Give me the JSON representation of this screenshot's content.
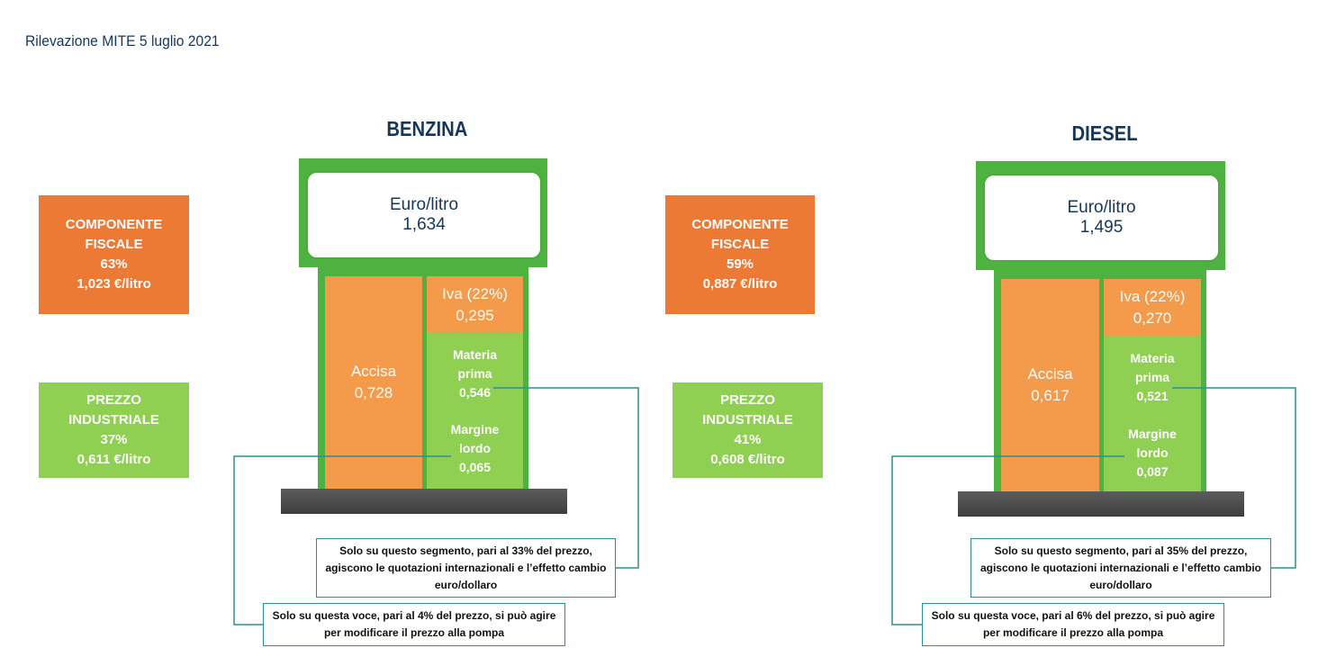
{
  "page_title": "Rilevazione MITE 5 luglio 2021",
  "benzina": {
    "title": "BENZINA",
    "head_label": "Euro/litro",
    "head_value": "1,634",
    "componente_fiscale": [
      "COMPONENTE",
      "FISCALE",
      "63%",
      "1,023 €/litro"
    ],
    "prezzo_industriale": [
      "PREZZO",
      "INDUSTRIALE",
      "37%",
      "0,611 €/litro"
    ],
    "accisa": [
      "Accisa",
      "0,728"
    ],
    "iva": [
      "Iva (22%)",
      "0,295"
    ],
    "materia_prima": [
      "Materia",
      "prima",
      "0,546"
    ],
    "margine_lordo": [
      "Margine",
      "lordo",
      "0,065"
    ],
    "note_segment": [
      "Solo su questo segmento, pari al 33% del prezzo,",
      "agiscono le quotazioni internazionali e l’effetto cambio",
      "euro/dollaro"
    ],
    "note_voice": [
      "Solo su questa voce, pari al 4% del prezzo, si può agire",
      "per modificare il prezzo alla pompa"
    ]
  },
  "diesel": {
    "title": "DIESEL",
    "head_label": "Euro/litro",
    "head_value": "1,495",
    "componente_fiscale": [
      "COMPONENTE",
      "FISCALE",
      "59%",
      "0,887 €/litro"
    ],
    "prezzo_industriale": [
      "PREZZO",
      "INDUSTRIALE",
      "41%",
      "0,608  €/litro"
    ],
    "accisa": [
      "Accisa",
      "0,617"
    ],
    "iva": [
      "Iva (22%)",
      "0,270"
    ],
    "materia_prima": [
      "Materia",
      "prima",
      "0,521"
    ],
    "margine_lordo": [
      "Margine",
      "lordo",
      "0,087"
    ],
    "note_segment": [
      "Solo su questo segmento, pari al 35% del prezzo,",
      "agiscono le quotazioni internazionali e l’effetto cambio",
      "euro/dollaro"
    ],
    "note_voice": [
      "Solo su questa voce, pari al 6% del prezzo, si può agire",
      "per modificare il prezzo alla pompa"
    ]
  },
  "colors": {
    "title_blue": "#14375a",
    "orange_box": "#ec7a35",
    "orange_segment": "#f39a4b",
    "green": "#8fcf51",
    "pump_green": "#4db23f",
    "connector": "#2e8f8b"
  }
}
